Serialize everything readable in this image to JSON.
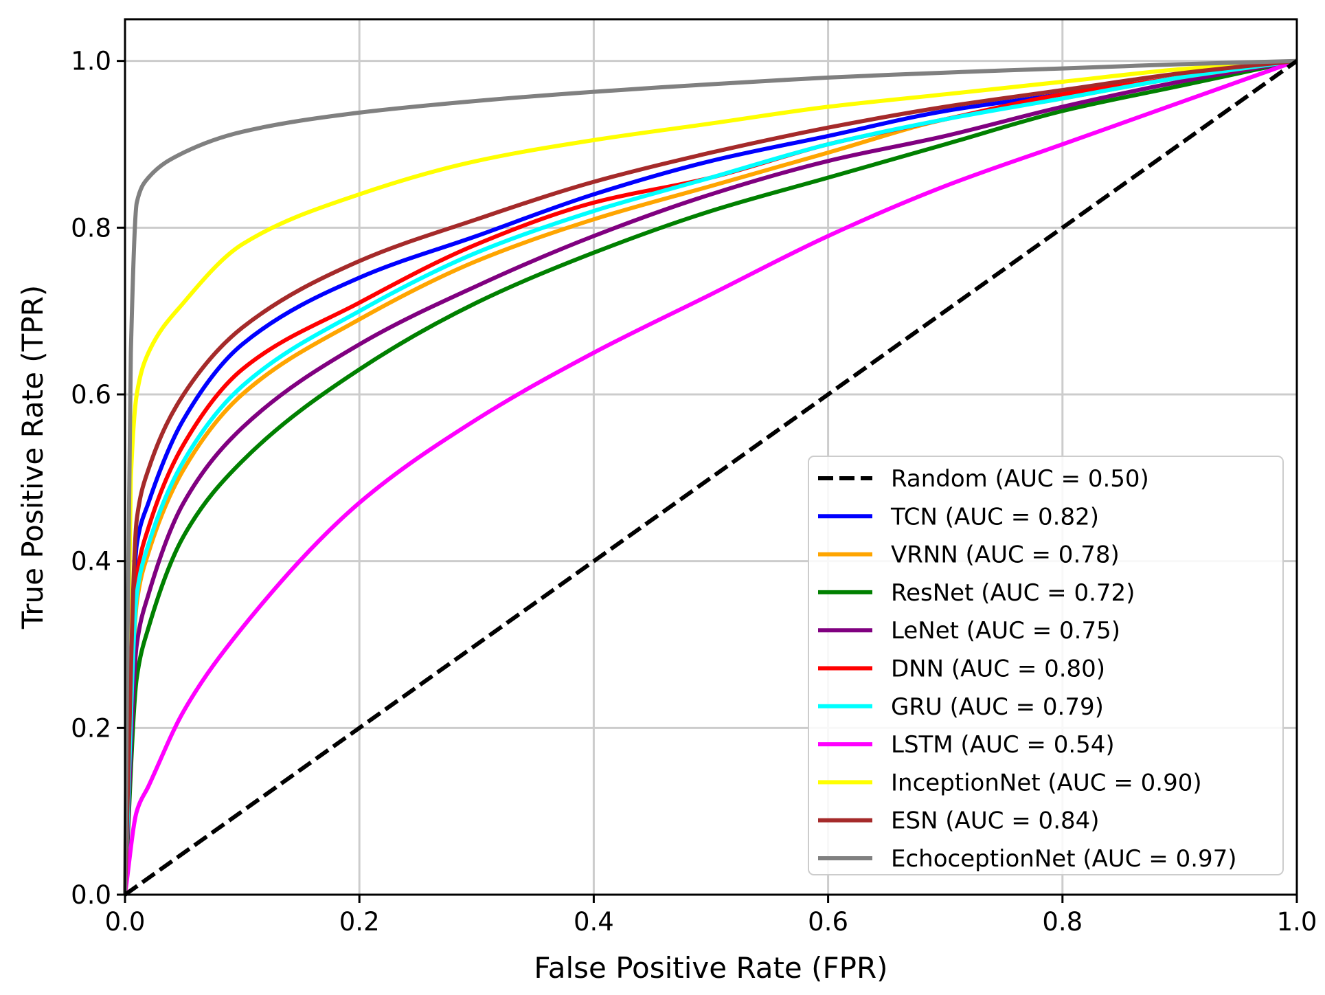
{
  "chart_data": {
    "type": "line",
    "title": "",
    "xlabel": "False Positive Rate (FPR)",
    "ylabel": "True Positive Rate (TPR)",
    "xlim": [
      0.0,
      1.0
    ],
    "ylim": [
      0.0,
      1.05
    ],
    "x_ticks": [
      "0.0",
      "0.2",
      "0.4",
      "0.6",
      "0.8",
      "1.0"
    ],
    "y_ticks": [
      "0.0",
      "0.2",
      "0.4",
      "0.6",
      "0.8",
      "1.0"
    ],
    "grid": true,
    "legend_position": "lower-right",
    "series": [
      {
        "name": "Random (AUC = 0.50)",
        "color": "#000000",
        "dash": true,
        "x": [
          0.0,
          1.0
        ],
        "y": [
          0.0,
          1.0
        ]
      },
      {
        "name": "TCN (AUC = 0.82)",
        "color": "#0000ff",
        "x": [
          0.0,
          0.01,
          0.02,
          0.05,
          0.1,
          0.2,
          0.3,
          0.4,
          0.5,
          0.6,
          0.7,
          0.8,
          0.9,
          1.0
        ],
        "y": [
          0.0,
          0.42,
          0.47,
          0.57,
          0.66,
          0.74,
          0.79,
          0.84,
          0.88,
          0.91,
          0.94,
          0.96,
          0.98,
          1.0
        ]
      },
      {
        "name": "VRNN (AUC = 0.78)",
        "color": "#ffa500",
        "x": [
          0.0,
          0.01,
          0.02,
          0.05,
          0.1,
          0.2,
          0.3,
          0.4,
          0.5,
          0.6,
          0.7,
          0.8,
          0.9,
          1.0
        ],
        "y": [
          0.0,
          0.35,
          0.41,
          0.51,
          0.6,
          0.69,
          0.76,
          0.81,
          0.85,
          0.89,
          0.93,
          0.955,
          0.98,
          1.0
        ]
      },
      {
        "name": "ResNet (AUC = 0.72)",
        "color": "#008000",
        "x": [
          0.0,
          0.01,
          0.02,
          0.05,
          0.1,
          0.2,
          0.3,
          0.4,
          0.5,
          0.6,
          0.7,
          0.8,
          0.9,
          1.0
        ],
        "y": [
          0.0,
          0.26,
          0.32,
          0.43,
          0.52,
          0.63,
          0.71,
          0.77,
          0.82,
          0.86,
          0.9,
          0.94,
          0.97,
          1.0
        ]
      },
      {
        "name": "LeNet (AUC = 0.75)",
        "color": "#800080",
        "x": [
          0.0,
          0.01,
          0.02,
          0.05,
          0.1,
          0.2,
          0.3,
          0.4,
          0.5,
          0.6,
          0.7,
          0.8,
          0.9,
          1.0
        ],
        "y": [
          0.0,
          0.3,
          0.36,
          0.47,
          0.56,
          0.66,
          0.73,
          0.79,
          0.84,
          0.88,
          0.91,
          0.945,
          0.975,
          1.0
        ]
      },
      {
        "name": "DNN (AUC = 0.80)",
        "color": "#ff0000",
        "x": [
          0.0,
          0.01,
          0.02,
          0.05,
          0.1,
          0.2,
          0.3,
          0.4,
          0.5,
          0.6,
          0.7,
          0.8,
          0.9,
          1.0
        ],
        "y": [
          0.0,
          0.38,
          0.44,
          0.54,
          0.63,
          0.71,
          0.78,
          0.83,
          0.86,
          0.9,
          0.93,
          0.96,
          0.98,
          1.0
        ]
      },
      {
        "name": "GRU (AUC = 0.79)",
        "color": "#00ffff",
        "x": [
          0.0,
          0.01,
          0.02,
          0.05,
          0.1,
          0.2,
          0.3,
          0.4,
          0.5,
          0.6,
          0.7,
          0.8,
          0.9,
          1.0
        ],
        "y": [
          0.0,
          0.36,
          0.42,
          0.52,
          0.61,
          0.7,
          0.77,
          0.82,
          0.86,
          0.9,
          0.93,
          0.955,
          0.98,
          1.0
        ]
      },
      {
        "name": "LSTM (AUC = 0.54)",
        "color": "#ff00ff",
        "x": [
          0.0,
          0.01,
          0.02,
          0.05,
          0.1,
          0.2,
          0.3,
          0.4,
          0.5,
          0.6,
          0.7,
          0.8,
          0.9,
          1.0
        ],
        "y": [
          0.0,
          0.1,
          0.13,
          0.22,
          0.32,
          0.47,
          0.57,
          0.65,
          0.72,
          0.79,
          0.85,
          0.9,
          0.95,
          1.0
        ]
      },
      {
        "name": "InceptionNet (AUC = 0.90)",
        "color": "#ffff00",
        "x": [
          0.0,
          0.005,
          0.01,
          0.02,
          0.05,
          0.1,
          0.2,
          0.3,
          0.4,
          0.5,
          0.6,
          0.7,
          0.8,
          0.9,
          1.0
        ],
        "y": [
          0.0,
          0.5,
          0.6,
          0.65,
          0.71,
          0.78,
          0.84,
          0.88,
          0.905,
          0.925,
          0.945,
          0.96,
          0.975,
          0.99,
          1.0
        ]
      },
      {
        "name": "ESN (AUC = 0.84)",
        "color": "#a52a2a",
        "x": [
          0.0,
          0.01,
          0.02,
          0.05,
          0.1,
          0.2,
          0.3,
          0.4,
          0.5,
          0.6,
          0.7,
          0.8,
          0.9,
          1.0
        ],
        "y": [
          0.0,
          0.45,
          0.51,
          0.6,
          0.68,
          0.76,
          0.81,
          0.855,
          0.89,
          0.92,
          0.945,
          0.965,
          0.985,
          1.0
        ]
      },
      {
        "name": "EchoceptionNet (AUC = 0.97)",
        "color": "#808080",
        "x": [
          0.0,
          0.005,
          0.01,
          0.02,
          0.05,
          0.1,
          0.2,
          0.3,
          0.4,
          0.5,
          0.6,
          0.7,
          0.8,
          0.9,
          1.0
        ],
        "y": [
          0.0,
          0.65,
          0.83,
          0.86,
          0.89,
          0.915,
          0.938,
          0.952,
          0.963,
          0.972,
          0.98,
          0.986,
          0.991,
          0.996,
          1.0
        ]
      }
    ]
  }
}
